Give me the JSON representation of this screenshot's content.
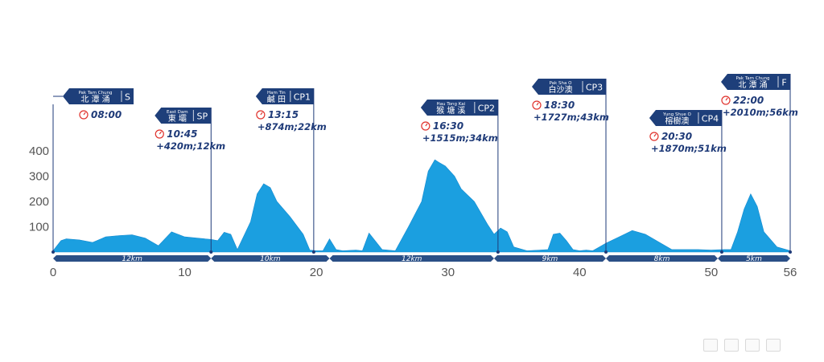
{
  "chart_data": {
    "type": "area",
    "xlim": [
      0,
      56
    ],
    "ylim": [
      0,
      450
    ],
    "x_ticks": [
      0,
      10,
      20,
      30,
      40,
      50,
      56
    ],
    "y_ticks": [
      100,
      200,
      300,
      400
    ],
    "grid": false,
    "fill_color": "#1b9fe0",
    "band_color": "#2a4f86",
    "flag_color": "#1e3f7a",
    "profile": {
      "x": [
        0,
        0.6,
        1,
        2,
        3,
        4,
        5,
        6,
        7,
        8,
        9,
        10,
        11,
        12,
        12.5,
        13,
        13.5,
        14,
        15,
        15.5,
        16,
        16.5,
        17,
        18,
        19,
        19.5,
        20,
        20.5,
        21,
        21.5,
        22,
        23,
        23.5,
        24,
        25,
        26,
        27,
        28,
        28.5,
        29,
        29.3,
        29.8,
        30.5,
        31,
        32,
        33,
        33.5,
        34,
        34.5,
        35,
        36,
        37,
        37.6,
        38,
        38.5,
        39,
        39.5,
        40,
        40.5,
        41,
        41.5,
        42,
        43,
        44,
        45,
        46,
        47,
        48,
        49,
        50,
        51,
        51.5,
        52,
        52.5,
        53,
        53.5,
        54,
        55,
        56
      ],
      "y": [
        5,
        45,
        52,
        48,
        38,
        60,
        65,
        68,
        55,
        25,
        80,
        60,
        55,
        50,
        45,
        78,
        70,
        10,
        120,
        230,
        270,
        255,
        200,
        140,
        70,
        8,
        5,
        5,
        52,
        10,
        5,
        8,
        5,
        75,
        10,
        5,
        100,
        200,
        320,
        365,
        355,
        340,
        300,
        250,
        200,
        110,
        70,
        95,
        80,
        20,
        5,
        8,
        10,
        70,
        75,
        45,
        10,
        5,
        8,
        5,
        20,
        35,
        60,
        85,
        70,
        40,
        10,
        10,
        10,
        8,
        10,
        10,
        80,
        170,
        230,
        180,
        80,
        20,
        5
      ]
    },
    "segments": [
      {
        "from": 0,
        "to": 12,
        "label": "12km"
      },
      {
        "from": 12,
        "to": 21,
        "label": "10km"
      },
      {
        "from": 21,
        "to": 33.5,
        "label": "12km"
      },
      {
        "from": 33.5,
        "to": 42,
        "label": "9km"
      },
      {
        "from": 42,
        "to": 50.5,
        "label": "8km"
      },
      {
        "from": 50.5,
        "to": 56,
        "label": "5km"
      }
    ],
    "checkpoints": [
      {
        "km": 0,
        "name_en": "Pak Tam Chung",
        "name_zh": "北 潭 涌",
        "code": "S",
        "time": "08:00",
        "stats": ""
      },
      {
        "km": 12,
        "name_en": "East Dam",
        "name_zh": "東 壩",
        "code": "SP",
        "time": "10:45",
        "stats": "+420m;12km"
      },
      {
        "km": 19.8,
        "name_en": "Ham Tin",
        "name_zh": "鹹 田",
        "code": "CP1",
        "time": "13:15",
        "stats": "+874m;22km"
      },
      {
        "km": 33.8,
        "name_en": "Hau Tong Kai",
        "name_zh": "猴 塘 溪",
        "code": "CP2",
        "time": "16:30",
        "stats": "+1515m;34km"
      },
      {
        "km": 42,
        "name_en": "Pak Sha O",
        "name_zh": "白沙澳",
        "code": "CP3",
        "time": "18:30",
        "stats": "+1727m;43km"
      },
      {
        "km": 50.8,
        "name_en": "Yung Shue O",
        "name_zh": "榕樹澳",
        "code": "CP4",
        "time": "20:30",
        "stats": "+1870m;51km"
      },
      {
        "km": 56,
        "name_en": "Pak Tam Chung",
        "name_zh": "北 潭 涌",
        "code": "F",
        "time": "22:00",
        "stats": "+2010m;56km"
      }
    ]
  }
}
